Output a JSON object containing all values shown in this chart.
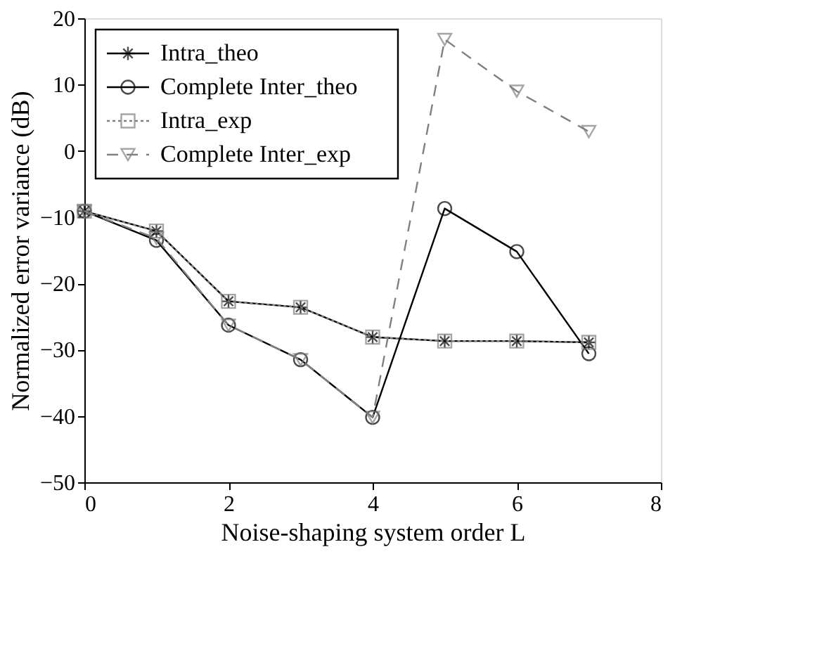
{
  "chart_data": {
    "type": "line",
    "xlabel": "Noise-shaping system order L",
    "ylabel": "Normalized error variance (dB)",
    "x": [
      0,
      1,
      2,
      3,
      4,
      5,
      6,
      7
    ],
    "series": [
      {
        "name": "Intra_theo",
        "color": "#000000",
        "marker": "cross",
        "line_style": "solid",
        "values": [
          -9.1,
          -12.1,
          -22.7,
          -23.6,
          -28.1,
          -28.7,
          -28.7,
          -28.9
        ]
      },
      {
        "name": "Complete Inter_theo",
        "color": "#000000",
        "marker": "circle",
        "line_style": "solid",
        "values": [
          -9.1,
          -13.5,
          -26.3,
          -31.5,
          -40.2,
          -8.7,
          -15.2,
          -30.6
        ]
      },
      {
        "name": "Intra_exp",
        "color": "#808080",
        "marker": "square",
        "line_style": "dotted",
        "values": [
          -9.1,
          -12.1,
          -22.7,
          -23.6,
          -28.1,
          -28.7,
          -28.7,
          -28.9
        ]
      },
      {
        "name": "Complete Inter_exp",
        "color": "#808080",
        "marker": "triangle",
        "line_style": "dashed",
        "values": [
          -9.1,
          -13.2,
          -26.3,
          -31.5,
          -40.2,
          16.8,
          9.0,
          2.9
        ]
      }
    ],
    "xlim": [
      0,
      8
    ],
    "xticks": [
      0,
      2,
      4,
      6,
      8
    ],
    "ylim": [
      -50,
      20
    ],
    "yticks": [
      -50,
      -40,
      -30,
      -20,
      -10,
      0,
      10,
      20
    ],
    "grid": false,
    "legend": "top left"
  }
}
